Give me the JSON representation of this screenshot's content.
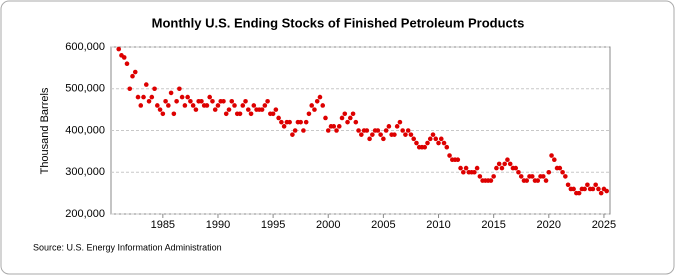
{
  "chart_data": {
    "type": "scatter",
    "title": "Monthly U.S. Ending Stocks of Finished Petroleum Products",
    "y_label": "Thousand Barrels",
    "source": "Source: U.S. Energy Information Administration",
    "color": "#dd0000",
    "grid": true,
    "xlim": [
      1980.3,
      2025.55
    ],
    "xticks": [
      1985,
      1990,
      1995,
      2000,
      2005,
      2010,
      2015,
      2020,
      2025
    ],
    "ylim": [
      200000,
      600000
    ],
    "yticks": [
      {
        "value": 200000,
        "label": "200,000"
      },
      {
        "value": 300000,
        "label": "300,000"
      },
      {
        "value": 400000,
        "label": "400,000"
      },
      {
        "value": 500000,
        "label": "500,000"
      },
      {
        "value": 600000,
        "label": "600,000"
      }
    ],
    "x": [
      1981,
      1981.25,
      1981.5,
      1981.75,
      1982,
      1982.25,
      1982.5,
      1982.75,
      1983,
      1983.25,
      1983.5,
      1983.75,
      1984,
      1984.25,
      1984.5,
      1984.75,
      1985,
      1985.25,
      1985.5,
      1985.75,
      1986,
      1986.25,
      1986.5,
      1986.75,
      1987,
      1987.25,
      1987.5,
      1987.75,
      1988,
      1988.25,
      1988.5,
      1988.75,
      1989,
      1989.25,
      1989.5,
      1989.75,
      1990,
      1990.25,
      1990.5,
      1990.75,
      1991,
      1991.25,
      1991.5,
      1991.75,
      1992,
      1992.25,
      1992.5,
      1992.75,
      1993,
      1993.25,
      1993.5,
      1993.75,
      1994,
      1994.25,
      1994.5,
      1994.75,
      1995,
      1995.25,
      1995.5,
      1995.75,
      1996,
      1996.25,
      1996.5,
      1996.75,
      1997,
      1997.25,
      1997.5,
      1997.75,
      1998,
      1998.25,
      1998.5,
      1998.75,
      1999,
      1999.25,
      1999.5,
      1999.75,
      2000,
      2000.25,
      2000.5,
      2000.75,
      2001,
      2001.25,
      2001.5,
      2001.75,
      2002,
      2002.25,
      2002.5,
      2002.75,
      2003,
      2003.25,
      2003.5,
      2003.75,
      2004,
      2004.25,
      2004.5,
      2004.75,
      2005,
      2005.25,
      2005.5,
      2005.75,
      2006,
      2006.25,
      2006.5,
      2006.75,
      2007,
      2007.25,
      2007.5,
      2007.75,
      2008,
      2008.25,
      2008.5,
      2008.75,
      2009,
      2009.25,
      2009.5,
      2009.75,
      2010,
      2010.25,
      2010.5,
      2010.75,
      2011,
      2011.25,
      2011.5,
      2011.75,
      2012,
      2012.25,
      2012.5,
      2012.75,
      2013,
      2013.25,
      2013.5,
      2013.75,
      2014,
      2014.25,
      2014.5,
      2014.75,
      2015,
      2015.25,
      2015.5,
      2015.75,
      2016,
      2016.25,
      2016.5,
      2016.75,
      2017,
      2017.25,
      2017.5,
      2017.75,
      2018,
      2018.25,
      2018.5,
      2018.75,
      2019,
      2019.25,
      2019.5,
      2019.75,
      2020,
      2020.25,
      2020.5,
      2020.75,
      2021,
      2021.25,
      2021.5,
      2021.75,
      2022,
      2022.25,
      2022.5,
      2022.75,
      2023,
      2023.25,
      2023.5,
      2023.75,
      2024,
      2024.25,
      2024.5,
      2024.75,
      2025,
      2025.25
    ],
    "values": [
      595000,
      580000,
      575000,
      560000,
      500000,
      530000,
      540000,
      480000,
      460000,
      480000,
      510000,
      470000,
      480000,
      500000,
      460000,
      450000,
      440000,
      470000,
      460000,
      490000,
      440000,
      470000,
      500000,
      480000,
      460000,
      480000,
      470000,
      460000,
      450000,
      470000,
      470000,
      460000,
      460000,
      480000,
      470000,
      450000,
      460000,
      470000,
      470000,
      440000,
      450000,
      470000,
      460000,
      440000,
      440000,
      460000,
      470000,
      450000,
      440000,
      460000,
      450000,
      450000,
      450000,
      460000,
      470000,
      440000,
      440000,
      450000,
      430000,
      420000,
      410000,
      420000,
      420000,
      390000,
      400000,
      420000,
      420000,
      400000,
      420000,
      440000,
      460000,
      450000,
      470000,
      480000,
      460000,
      430000,
      400000,
      410000,
      410000,
      400000,
      410000,
      430000,
      440000,
      420000,
      430000,
      440000,
      420000,
      400000,
      390000,
      400000,
      400000,
      380000,
      390000,
      400000,
      400000,
      390000,
      380000,
      400000,
      410000,
      390000,
      390000,
      410000,
      420000,
      400000,
      390000,
      400000,
      390000,
      380000,
      370000,
      360000,
      360000,
      360000,
      370000,
      380000,
      390000,
      380000,
      370000,
      380000,
      370000,
      360000,
      340000,
      330000,
      330000,
      330000,
      310000,
      300000,
      310000,
      300000,
      300000,
      300000,
      310000,
      290000,
      280000,
      280000,
      280000,
      280000,
      290000,
      310000,
      320000,
      310000,
      320000,
      330000,
      320000,
      310000,
      310000,
      300000,
      290000,
      280000,
      280000,
      290000,
      290000,
      280000,
      280000,
      290000,
      290000,
      280000,
      300000,
      340000,
      330000,
      310000,
      310000,
      300000,
      290000,
      270000,
      260000,
      260000,
      250000,
      250000,
      260000,
      260000,
      270000,
      260000,
      260000,
      270000,
      260000,
      250000,
      260000,
      255000
    ]
  }
}
